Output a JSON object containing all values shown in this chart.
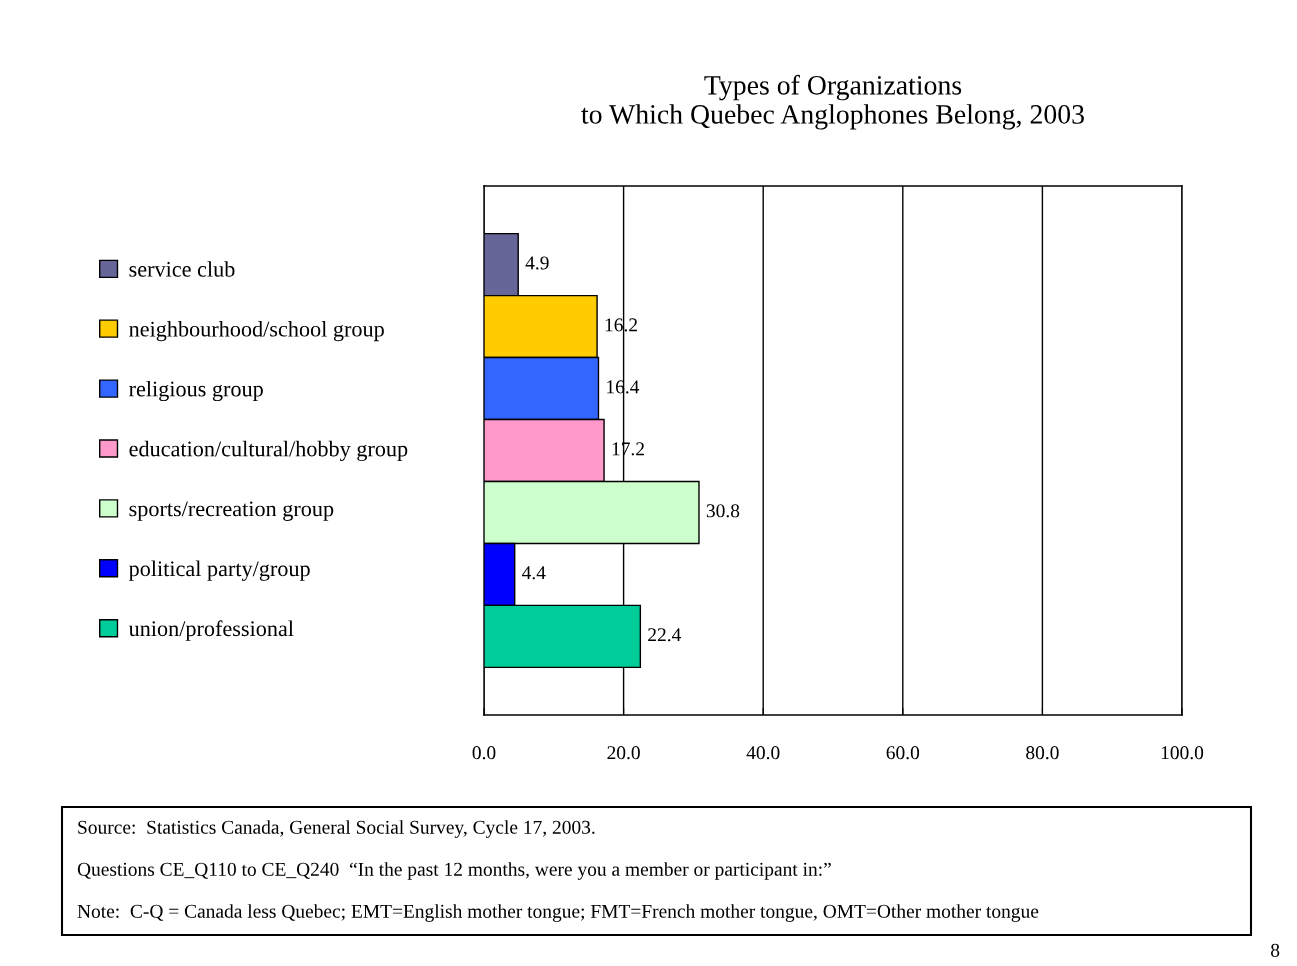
{
  "chart_data": {
    "type": "bar",
    "orientation": "horizontal",
    "title": "Types of Organizations\nto Which Quebec Anglophones Belong, 2003",
    "categories": [
      null
    ],
    "series": [
      {
        "name": "service club",
        "color": "#666699",
        "values": [
          4.9
        ]
      },
      {
        "name": "neighbourhood/school group",
        "color": "#ffcc00",
        "values": [
          16.2
        ]
      },
      {
        "name": "religious group",
        "color": "#3366ff",
        "values": [
          16.4
        ]
      },
      {
        "name": "education/cultural/hobby group",
        "color": "#ff99cc",
        "values": [
          17.2
        ]
      },
      {
        "name": "sports/recreation group",
        "color": "#ccffcc",
        "values": [
          30.8
        ]
      },
      {
        "name": "political party/group",
        "color": "#0000ff",
        "values": [
          4.4
        ]
      },
      {
        "name": "union/professional",
        "color": "#00cc99",
        "values": [
          22.4
        ]
      }
    ],
    "xlim": [
      0,
      100
    ],
    "xticks": [
      {
        "value": 0,
        "label": "0.0"
      },
      {
        "value": 20,
        "label": "20.0"
      },
      {
        "value": 40,
        "label": "40.0"
      },
      {
        "value": 60,
        "label": "60.0"
      },
      {
        "value": 80,
        "label": "80.0"
      },
      {
        "value": 100,
        "label": "100.0"
      }
    ],
    "grid": "x",
    "legend": "left",
    "data_labels": true,
    "annotations": [
      "Source:  Statistics Canada, General Social Survey, Cycle 17, 2003.",
      "Questions CE_Q110 to CE_Q240  “In the past 12 months, were you a member or participant in:”",
      "Note:  C-Q = Canada less Quebec; EMT=English mother tongue; FMT=French mother tongue, OMT=Other mother tongue",
      "8"
    ]
  }
}
